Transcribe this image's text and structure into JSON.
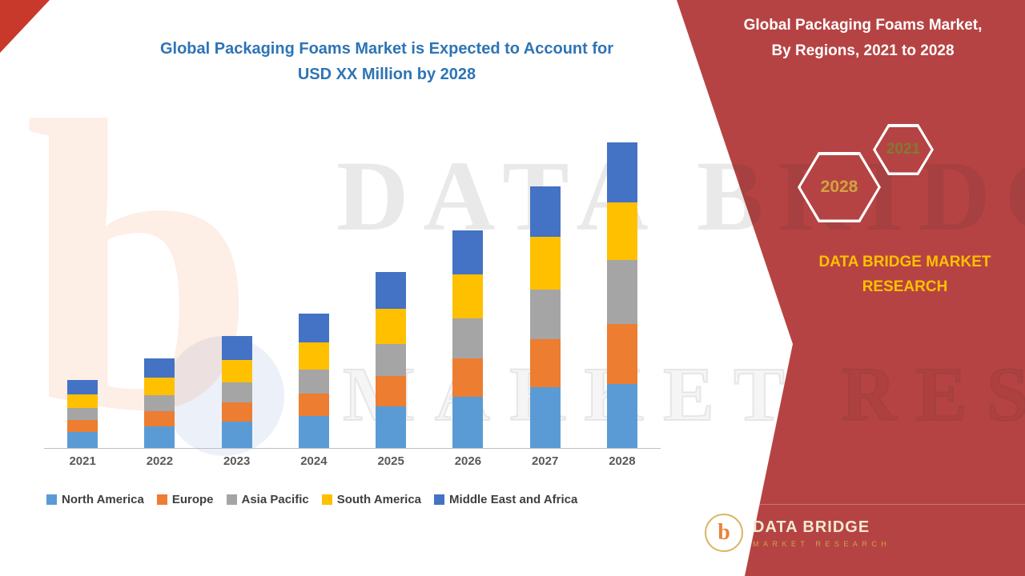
{
  "left": {
    "title_line1": "Global Packaging Foams Market is Expected to Account for",
    "title_line2": "USD XX Million by 2028",
    "title_color": "#2e74b5"
  },
  "right_panel": {
    "bg": "#b64343",
    "corner_color": "#c8392b",
    "title_line1": "Global Packaging Foams Market,",
    "title_line2": "By Regions, 2021 to 2028",
    "hexagons": [
      {
        "label": "2028",
        "label_color": "#d1a43f"
      },
      {
        "label": "2021",
        "label_color": "#7e7b33"
      }
    ],
    "brand_line1": "DATA BRIDGE MARKET",
    "brand_line2": "RESEARCH",
    "brand_color": "#ffc000",
    "logo": {
      "glyph": "b",
      "title": "DATA BRIDGE",
      "subtitle": "MARKET RESEARCH"
    }
  },
  "watermark": {
    "logo_glyph": "b",
    "line1": "DATA BRIDGE",
    "line2": "MARKET RESEARCH"
  },
  "chart_data": {
    "type": "bar",
    "stacked": true,
    "title": "Global Packaging Foams Market, By Regions, 2021 to 2028",
    "xlabel": "",
    "ylabel": "",
    "categories": [
      "2021",
      "2022",
      "2023",
      "2024",
      "2025",
      "2026",
      "2027",
      "2028"
    ],
    "series": [
      {
        "name": "North America",
        "color": "#5b9bd5",
        "values": [
          20,
          27,
          33,
          40,
          52,
          64,
          76,
          80
        ]
      },
      {
        "name": "Europe",
        "color": "#ed7d31",
        "values": [
          15,
          19,
          24,
          28,
          38,
          48,
          60,
          75
        ]
      },
      {
        "name": "Asia Pacific",
        "color": "#a5a5a5",
        "values": [
          15,
          20,
          25,
          30,
          40,
          50,
          62,
          80
        ]
      },
      {
        "name": "South America",
        "color": "#ffc000",
        "values": [
          17,
          22,
          28,
          34,
          44,
          55,
          66,
          72
        ]
      },
      {
        "name": "Middle East and Africa",
        "color": "#4472c4",
        "values": [
          18,
          24,
          30,
          36,
          46,
          55,
          63,
          75
        ]
      }
    ],
    "ylim": [
      0,
      400
    ],
    "grid": false,
    "legend_position": "bottom",
    "value_note": "values are relative units estimated from bar pixel heights; no y-axis labels shown"
  }
}
